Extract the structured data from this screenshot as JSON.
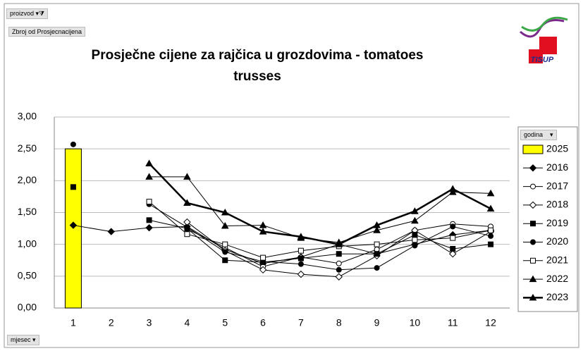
{
  "ui": {
    "page_filter": "proizvod",
    "value_field": "Zbroj od Prosjecnacijena",
    "legend_field": "godina",
    "axis_field": "mjesec",
    "logo": "TISUP"
  },
  "chart_data": {
    "type": "line",
    "title": "Prosječne cijene za rajčica  u grozdovima - tomatoes trusses",
    "categories": [
      "1",
      "2",
      "3",
      "4",
      "5",
      "6",
      "7",
      "8",
      "9",
      "10",
      "11",
      "12"
    ],
    "ylim": [
      0,
      3
    ],
    "yticks": [
      {
        "value": 0,
        "label": "0,00"
      },
      {
        "value": 0.5,
        "label": "0,50"
      },
      {
        "value": 1,
        "label": "1,00"
      },
      {
        "value": 1.5,
        "label": "1,50"
      },
      {
        "value": 2,
        "label": "2,00"
      },
      {
        "value": 2.5,
        "label": "2,50"
      },
      {
        "value": 3,
        "label": "3,00"
      }
    ],
    "grid": true,
    "legend": "right",
    "series": [
      {
        "name": "2025",
        "type": "bar",
        "color": "#ffff00",
        "values": [
          2.5,
          null,
          null,
          null,
          null,
          null,
          null,
          null,
          null,
          null,
          null,
          null
        ]
      },
      {
        "name": "2016",
        "marker": "diamond",
        "color": "#000000",
        "values": [
          1.3,
          1.2,
          1.26,
          1.28,
          0.92,
          0.7,
          0.8,
          1.0,
          0.85,
          1.0,
          1.15,
          1.22
        ]
      },
      {
        "name": "2017",
        "marker": "circle-open",
        "color": "#000000",
        "values": [
          null,
          null,
          null,
          1.24,
          0.95,
          0.65,
          0.8,
          0.7,
          0.92,
          1.22,
          1.32,
          1.28
        ]
      },
      {
        "name": "2018",
        "marker": "diamond-open",
        "color": "#000000",
        "values": [
          null,
          null,
          null,
          1.35,
          0.9,
          0.6,
          0.53,
          0.49,
          0.82,
          1.22,
          0.85,
          1.2
        ]
      },
      {
        "name": "2019",
        "marker": "square",
        "color": "#000000",
        "values": [
          1.9,
          null,
          1.38,
          1.25,
          0.75,
          0.72,
          0.78,
          0.85,
          0.85,
          1.15,
          0.93,
          1.0
        ]
      },
      {
        "name": "2020",
        "marker": "circle",
        "color": "#000000",
        "values": [
          2.57,
          null,
          1.63,
          1.27,
          0.88,
          0.73,
          0.69,
          0.6,
          0.63,
          0.98,
          1.28,
          1.13
        ]
      },
      {
        "name": "2021",
        "marker": "square-open",
        "color": "#000000",
        "values": [
          null,
          null,
          1.67,
          1.16,
          1.0,
          0.79,
          0.9,
          0.97,
          1.0,
          1.07,
          1.1,
          1.22
        ]
      },
      {
        "name": "2022",
        "marker": "triangle",
        "color": "#000000",
        "values": [
          null,
          null,
          2.06,
          2.06,
          1.29,
          1.3,
          1.1,
          1.03,
          1.22,
          1.37,
          1.82,
          1.8
        ]
      },
      {
        "name": "2023",
        "marker": "triangle",
        "color": "#000000",
        "line_width": 2.5,
        "values": [
          null,
          null,
          2.27,
          1.65,
          1.5,
          1.2,
          1.12,
          1.0,
          1.3,
          1.52,
          1.87,
          1.56
        ]
      }
    ]
  }
}
